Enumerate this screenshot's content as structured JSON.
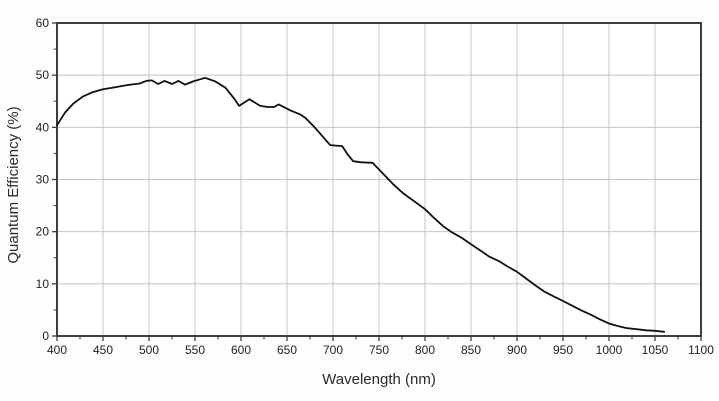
{
  "page": {
    "background": "#fdfdfd"
  },
  "chart_data": {
    "type": "line",
    "title": "",
    "xlabel": "Wavelength (nm)",
    "ylabel": "Quantum Efficiency (%)",
    "xlim": [
      400,
      1100
    ],
    "ylim": [
      0,
      60
    ],
    "x_major_ticks": [
      400,
      450,
      500,
      550,
      600,
      650,
      700,
      750,
      800,
      850,
      900,
      950,
      1000,
      1050,
      1100
    ],
    "x_minor_step": 25,
    "y_major_ticks": [
      0,
      10,
      20,
      30,
      40,
      50,
      60
    ],
    "y_minor_step": 5,
    "grid": true,
    "legend": "none",
    "colors": {
      "line": "#111111",
      "grid": "#c4c4c4",
      "axis": "#3d3d3d",
      "text": "#222222",
      "plot_bg": "#ffffff"
    },
    "series": [
      {
        "name": "Quantum efficiency",
        "color": "#111111",
        "points": [
          [
            400,
            40.4
          ],
          [
            409,
            42.9
          ],
          [
            418,
            44.6
          ],
          [
            428,
            45.9
          ],
          [
            438,
            46.7
          ],
          [
            450,
            47.3
          ],
          [
            460,
            47.6
          ],
          [
            470,
            47.9
          ],
          [
            480,
            48.2
          ],
          [
            490,
            48.4
          ],
          [
            497,
            48.9
          ],
          [
            503,
            49.0
          ],
          [
            510,
            48.3
          ],
          [
            517,
            48.9
          ],
          [
            525,
            48.3
          ],
          [
            532,
            48.9
          ],
          [
            539,
            48.2
          ],
          [
            548,
            48.8
          ],
          [
            561,
            49.5
          ],
          [
            572,
            48.8
          ],
          [
            583,
            47.6
          ],
          [
            593,
            45.4
          ],
          [
            598,
            44.1
          ],
          [
            609,
            45.4
          ],
          [
            621,
            44.1
          ],
          [
            629,
            43.9
          ],
          [
            636,
            43.9
          ],
          [
            641,
            44.4
          ],
          [
            654,
            43.2
          ],
          [
            664,
            42.5
          ],
          [
            670,
            41.8
          ],
          [
            675,
            40.9
          ],
          [
            680,
            40.0
          ],
          [
            690,
            38.0
          ],
          [
            697,
            36.6
          ],
          [
            710,
            36.4
          ],
          [
            716,
            34.8
          ],
          [
            722,
            33.5
          ],
          [
            731,
            33.3
          ],
          [
            743,
            33.2
          ],
          [
            755,
            31.0
          ],
          [
            766,
            29.0
          ],
          [
            776,
            27.4
          ],
          [
            787,
            26.0
          ],
          [
            800,
            24.3
          ],
          [
            810,
            22.6
          ],
          [
            820,
            21.0
          ],
          [
            830,
            19.8
          ],
          [
            840,
            18.8
          ],
          [
            850,
            17.6
          ],
          [
            860,
            16.4
          ],
          [
            870,
            15.2
          ],
          [
            880,
            14.4
          ],
          [
            890,
            13.3
          ],
          [
            900,
            12.3
          ],
          [
            910,
            11.0
          ],
          [
            920,
            9.7
          ],
          [
            930,
            8.5
          ],
          [
            940,
            7.6
          ],
          [
            950,
            6.7
          ],
          [
            960,
            5.8
          ],
          [
            970,
            4.9
          ],
          [
            980,
            4.1
          ],
          [
            990,
            3.2
          ],
          [
            1000,
            2.4
          ],
          [
            1010,
            1.9
          ],
          [
            1020,
            1.5
          ],
          [
            1030,
            1.3
          ],
          [
            1040,
            1.1
          ],
          [
            1050,
            1.0
          ],
          [
            1060,
            0.8
          ]
        ]
      }
    ]
  }
}
